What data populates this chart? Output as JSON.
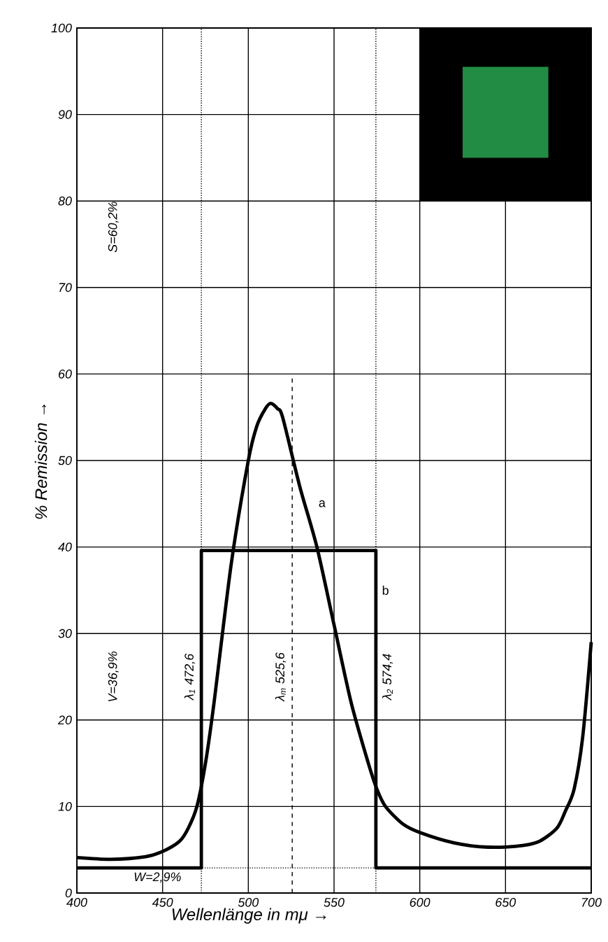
{
  "chart_data": {
    "type": "line",
    "xlabel": "Wellenlänge in mμ →",
    "ylabel": "% Remission →",
    "xlim": [
      400,
      700
    ],
    "ylim": [
      0,
      100
    ],
    "xticks": [
      400,
      450,
      500,
      550,
      600,
      650,
      700
    ],
    "yticks": [
      0,
      10,
      20,
      30,
      40,
      50,
      60,
      70,
      80,
      90,
      100
    ],
    "grid": true,
    "marker": "none",
    "series": [
      {
        "color": "#000000",
        "x": [
          400,
          420,
          440,
          450,
          460,
          465,
          470,
          475,
          480,
          490,
          500,
          505,
          510,
          513,
          517,
          520,
          530,
          540,
          550,
          560,
          570,
          575,
          580,
          590,
          600,
          620,
          640,
          660,
          670,
          680,
          685,
          690,
          695,
          700
        ],
        "values": [
          4.1,
          3.9,
          4.2,
          4.8,
          6,
          7.5,
          10,
          15,
          22,
          38,
          50,
          54,
          56,
          56.6,
          56,
          55,
          47,
          40,
          31,
          22,
          15,
          12,
          10,
          8,
          7,
          5.8,
          5.3,
          5.5,
          6,
          7.5,
          9.5,
          12,
          18,
          29
        ]
      },
      {
        "type": "step",
        "color": "#000000",
        "x": [
          400,
          472.6,
          574.4,
          700
        ],
        "values": [
          2.9,
          39.6,
          2.9,
          2.9
        ]
      }
    ],
    "ref_lines": [
      {
        "axis": "x",
        "value": 472.6,
        "label": "λ$_{1}$ 472,6",
        "line_style": "dotted"
      },
      {
        "axis": "x",
        "value": 525.6,
        "label": "λ$_{m}$ 525,6",
        "line_style": "dashed"
      },
      {
        "axis": "x",
        "value": 574.4,
        "label": "λ$_{2}$ 574,4",
        "line_style": "dotted"
      },
      {
        "axis": "y",
        "value": 2.9,
        "label": "W=2,9%",
        "line_style": "dotted"
      }
    ],
    "annotations": [
      "S=60,2%",
      "V=36,9%",
      "a",
      "b"
    ]
  }
}
